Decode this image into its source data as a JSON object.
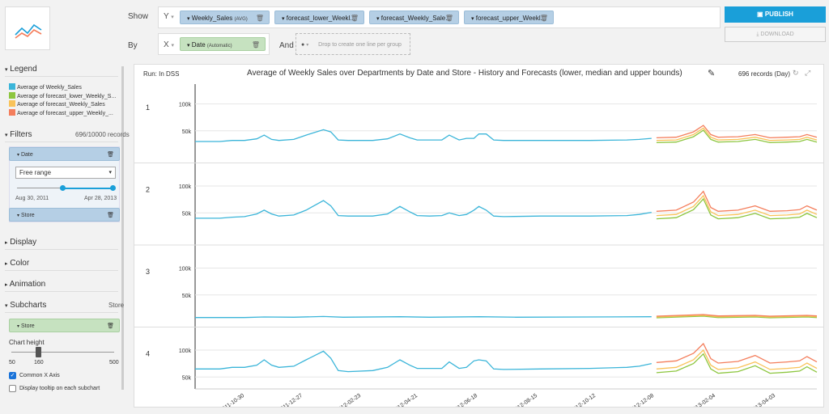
{
  "toolbar": {
    "show_label": "Show",
    "by_label": "By",
    "and_label": "And",
    "y_axis": "Y",
    "x_axis": "X",
    "y_measures": [
      {
        "label": "Weekly_Sales",
        "agg": "(AVG)"
      },
      {
        "label": "forecast_lower_Weekl...",
        "agg": ""
      },
      {
        "label": "forecast_Weekly_Sale...",
        "agg": ""
      },
      {
        "label": "forecast_upper_Weekl...",
        "agg": ""
      }
    ],
    "x_dimension": {
      "label": "Date",
      "agg": "(Automatic)"
    },
    "group_placeholder": "Drop to create one line per group",
    "publish_label": "PUBLISH",
    "download_label": "DOWNLOAD"
  },
  "sidebar": {
    "legend_title": "Legend",
    "legend_items": [
      {
        "label": "Average of Weekly_Sales",
        "color": "#3bb5d9"
      },
      {
        "label": "Average of forecast_lower_Weekly_S...",
        "color": "#8dc63f"
      },
      {
        "label": "Average of forecast_Weekly_Sales",
        "color": "#f9c35a"
      },
      {
        "label": "Average of forecast_upper_Weekly_...",
        "color": "#f47e5c"
      }
    ],
    "filters_title": "Filters",
    "filters_count": "696/10000 records",
    "date_filter_label": "Date",
    "range_select": "Free range",
    "range_start": "Aug 30, 2011",
    "range_end": "Apr 28, 2013",
    "store_filter_label": "Store",
    "display_title": "Display",
    "color_title": "Color",
    "animation_title": "Animation",
    "subcharts_title": "Subcharts",
    "subcharts_value": "Store",
    "subchart_pill": "Store",
    "chart_height_label": "Chart height",
    "height_min": "50",
    "height_value": "160",
    "height_max": "500",
    "common_x_label": "Common X Axis",
    "tooltip_label": "Display tooltip on each subchart"
  },
  "chart": {
    "run_label": "Run: In DSS",
    "title": "Average of Weekly Sales over Departments by Date and Store - History and Forecasts (lower, median and upper bounds)",
    "records": "696 records (Day)"
  },
  "chart_data": {
    "type": "line",
    "title": "Average of Weekly Sales over Departments by Date and Store - History and Forecasts (lower, median and upper bounds)",
    "x_ticks": [
      "2011-10-30",
      "2011-12-27",
      "2012-02-23",
      "2012-04-21",
      "2012-06-18",
      "2012-08-15",
      "2012-10-12",
      "2012-12-08",
      "2013-02-04",
      "2013-04-03"
    ],
    "y_ticks": [
      "50k",
      "100k"
    ],
    "ylim": [
      0,
      140000
    ],
    "series_colors": {
      "history": "#3bb5d9",
      "lower": "#8dc63f",
      "median": "#f9c35a",
      "upper": "#f47e5c"
    },
    "subcharts": [
      {
        "store": "1",
        "history": [
          [
            0,
            30000
          ],
          [
            0.1,
            30000
          ],
          [
            0.15,
            32000
          ],
          [
            0.2,
            32000
          ],
          [
            0.25,
            35000
          ],
          [
            0.28,
            42000
          ],
          [
            0.31,
            34000
          ],
          [
            0.34,
            32000
          ],
          [
            0.4,
            34000
          ],
          [
            0.45,
            42000
          ],
          [
            0.52,
            52000
          ],
          [
            0.55,
            48000
          ],
          [
            0.58,
            33000
          ],
          [
            0.62,
            32000
          ],
          [
            0.72,
            32000
          ],
          [
            0.78,
            35000
          ],
          [
            0.83,
            44000
          ],
          [
            0.87,
            37000
          ],
          [
            0.9,
            33000
          ],
          [
            0.95,
            33000
          ],
          [
            1.0,
            33000
          ],
          [
            1.03,
            42000
          ],
          [
            1.07,
            33000
          ],
          [
            1.1,
            36000
          ],
          [
            1.13,
            36000
          ],
          [
            1.15,
            44000
          ],
          [
            1.18,
            44000
          ],
          [
            1.21,
            33000
          ],
          [
            1.25,
            32000
          ],
          [
            1.4,
            32000
          ],
          [
            1.6,
            32000
          ],
          [
            1.75,
            33000
          ],
          [
            1.8,
            34000
          ],
          [
            1.85,
            36000
          ]
        ],
        "median": [
          [
            1.87,
            32000
          ],
          [
            1.95,
            33000
          ],
          [
            2.02,
            43000
          ],
          [
            2.06,
            55000
          ],
          [
            2.09,
            38000
          ],
          [
            2.12,
            33000
          ],
          [
            2.2,
            34000
          ],
          [
            2.27,
            38000
          ],
          [
            2.33,
            32000
          ],
          [
            2.4,
            33000
          ],
          [
            2.45,
            34000
          ],
          [
            2.48,
            38000
          ],
          [
            2.52,
            33000
          ]
        ],
        "lower": -4000,
        "upper": 5000
      },
      {
        "store": "2",
        "history": [
          [
            0,
            40000
          ],
          [
            0.1,
            40000
          ],
          [
            0.15,
            42000
          ],
          [
            0.2,
            43000
          ],
          [
            0.25,
            48000
          ],
          [
            0.28,
            55000
          ],
          [
            0.31,
            48000
          ],
          [
            0.34,
            44000
          ],
          [
            0.4,
            46000
          ],
          [
            0.45,
            55000
          ],
          [
            0.52,
            73000
          ],
          [
            0.55,
            63000
          ],
          [
            0.58,
            45000
          ],
          [
            0.62,
            44000
          ],
          [
            0.72,
            44000
          ],
          [
            0.78,
            48000
          ],
          [
            0.83,
            62000
          ],
          [
            0.87,
            52000
          ],
          [
            0.9,
            45000
          ],
          [
            0.95,
            44000
          ],
          [
            1.0,
            45000
          ],
          [
            1.03,
            50000
          ],
          [
            1.07,
            45000
          ],
          [
            1.1,
            47000
          ],
          [
            1.13,
            55000
          ],
          [
            1.15,
            62000
          ],
          [
            1.18,
            55000
          ],
          [
            1.21,
            44000
          ],
          [
            1.25,
            43000
          ],
          [
            1.4,
            44000
          ],
          [
            1.6,
            44000
          ],
          [
            1.75,
            45000
          ],
          [
            1.8,
            47000
          ],
          [
            1.85,
            51000
          ]
        ],
        "median": [
          [
            1.87,
            45000
          ],
          [
            1.95,
            47000
          ],
          [
            2.02,
            62000
          ],
          [
            2.06,
            82000
          ],
          [
            2.09,
            52000
          ],
          [
            2.12,
            45000
          ],
          [
            2.2,
            47000
          ],
          [
            2.27,
            55000
          ],
          [
            2.33,
            45000
          ],
          [
            2.4,
            46000
          ],
          [
            2.45,
            48000
          ],
          [
            2.48,
            55000
          ],
          [
            2.52,
            47000
          ]
        ],
        "lower": -6000,
        "upper": 8000
      },
      {
        "store": "3",
        "history": [
          [
            0,
            8000
          ],
          [
            0.2,
            8000
          ],
          [
            0.28,
            9000
          ],
          [
            0.4,
            8500
          ],
          [
            0.52,
            10000
          ],
          [
            0.6,
            8500
          ],
          [
            0.83,
            9500
          ],
          [
            0.95,
            8500
          ],
          [
            1.15,
            9500
          ],
          [
            1.3,
            8500
          ],
          [
            1.6,
            9000
          ],
          [
            1.85,
            9500
          ]
        ],
        "median": [
          [
            1.87,
            9000
          ],
          [
            2.06,
            12000
          ],
          [
            2.12,
            9500
          ],
          [
            2.27,
            10500
          ],
          [
            2.33,
            9000
          ],
          [
            2.48,
            10500
          ],
          [
            2.52,
            9500
          ]
        ],
        "lower": -1500,
        "upper": 1500
      },
      {
        "store": "4",
        "history": [
          [
            0,
            65000
          ],
          [
            0.1,
            65000
          ],
          [
            0.15,
            68000
          ],
          [
            0.2,
            68000
          ],
          [
            0.25,
            72000
          ],
          [
            0.28,
            82000
          ],
          [
            0.31,
            72000
          ],
          [
            0.34,
            68000
          ],
          [
            0.4,
            70000
          ],
          [
            0.45,
            82000
          ],
          [
            0.52,
            98000
          ],
          [
            0.55,
            85000
          ],
          [
            0.58,
            62000
          ],
          [
            0.62,
            60000
          ],
          [
            0.72,
            62000
          ],
          [
            0.78,
            68000
          ],
          [
            0.83,
            82000
          ],
          [
            0.87,
            72000
          ],
          [
            0.9,
            66000
          ],
          [
            0.95,
            66000
          ],
          [
            1.0,
            66000
          ],
          [
            1.03,
            78000
          ],
          [
            1.07,
            66000
          ],
          [
            1.1,
            68000
          ],
          [
            1.13,
            80000
          ],
          [
            1.15,
            82000
          ],
          [
            1.18,
            80000
          ],
          [
            1.21,
            65000
          ],
          [
            1.25,
            64000
          ],
          [
            1.4,
            65000
          ],
          [
            1.6,
            66000
          ],
          [
            1.75,
            68000
          ],
          [
            1.8,
            70000
          ],
          [
            1.85,
            75000
          ]
        ],
        "median": [
          [
            1.87,
            65000
          ],
          [
            1.95,
            68000
          ],
          [
            2.02,
            82000
          ],
          [
            2.06,
            100000
          ],
          [
            2.09,
            72000
          ],
          [
            2.12,
            64000
          ],
          [
            2.2,
            67000
          ],
          [
            2.27,
            78000
          ],
          [
            2.33,
            64000
          ],
          [
            2.4,
            66000
          ],
          [
            2.45,
            68000
          ],
          [
            2.48,
            76000
          ],
          [
            2.52,
            66000
          ]
        ],
        "lower": -7000,
        "upper": 12000
      }
    ]
  }
}
